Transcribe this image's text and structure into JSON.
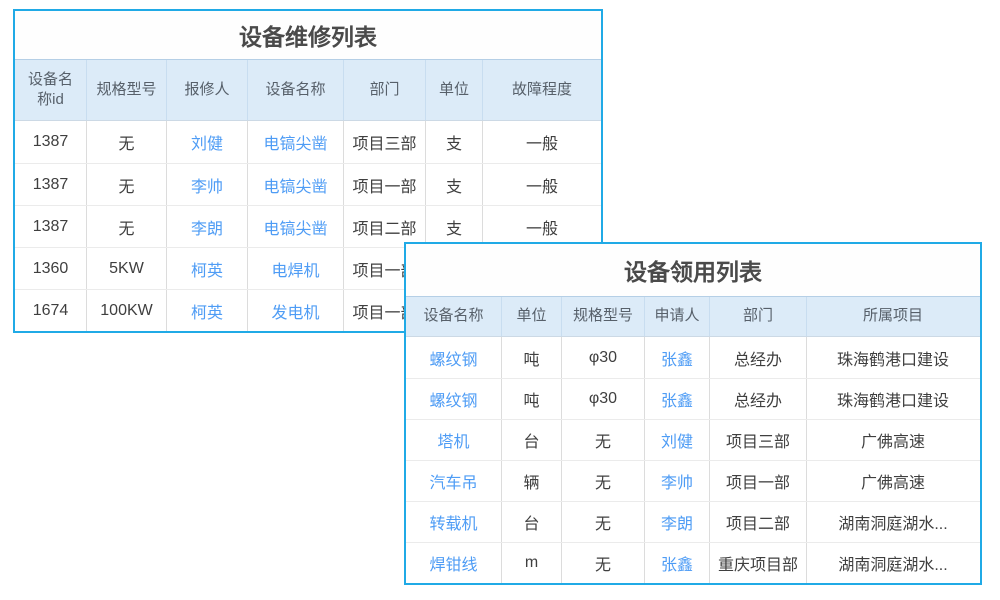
{
  "colors": {
    "card_border": "#20aae6",
    "header_bg": "#dcebf8",
    "link_text": "#4e9cf5",
    "title_text": "#4a4a4a",
    "header_text": "#57606a",
    "body_text": "#3f3f3f"
  },
  "repair": {
    "title": "设备维修列表",
    "columns": [
      "设备名称id",
      "规格型号",
      "报修人",
      "设备名称",
      "部门",
      "单位",
      "故障程度"
    ],
    "rows": [
      [
        "1387",
        "无",
        "刘健",
        "电镐尖凿",
        "项目三部",
        "支",
        "一般"
      ],
      [
        "1387",
        "无",
        "李帅",
        "电镐尖凿",
        "项目一部",
        "支",
        "一般"
      ],
      [
        "1387",
        "无",
        "李朗",
        "电镐尖凿",
        "项目二部",
        "支",
        "一般"
      ],
      [
        "1360",
        "5KW",
        "柯英",
        "电焊机",
        "项目一部",
        "",
        ""
      ],
      [
        "1674",
        "100KW",
        "柯英",
        "发电机",
        "项目一部",
        "",
        ""
      ]
    ]
  },
  "requisition": {
    "title": "设备领用列表",
    "columns": [
      "设备名称",
      "单位",
      "规格型号",
      "申请人",
      "部门",
      "所属项目"
    ],
    "rows": [
      [
        "螺纹钢",
        "吨",
        "φ30",
        "张鑫",
        "总经办",
        "珠海鹤港口建设"
      ],
      [
        "螺纹钢",
        "吨",
        "φ30",
        "张鑫",
        "总经办",
        "珠海鹤港口建设"
      ],
      [
        "塔机",
        "台",
        "无",
        "刘健",
        "项目三部",
        "广佛高速"
      ],
      [
        "汽车吊",
        "辆",
        "无",
        "李帅",
        "项目一部",
        "广佛高速"
      ],
      [
        "转载机",
        "台",
        "无",
        "李朗",
        "项目二部",
        "湖南洞庭湖水..."
      ],
      [
        "焊钳线",
        "m",
        "无",
        "张鑫",
        "重庆项目部",
        "湖南洞庭湖水..."
      ]
    ]
  }
}
